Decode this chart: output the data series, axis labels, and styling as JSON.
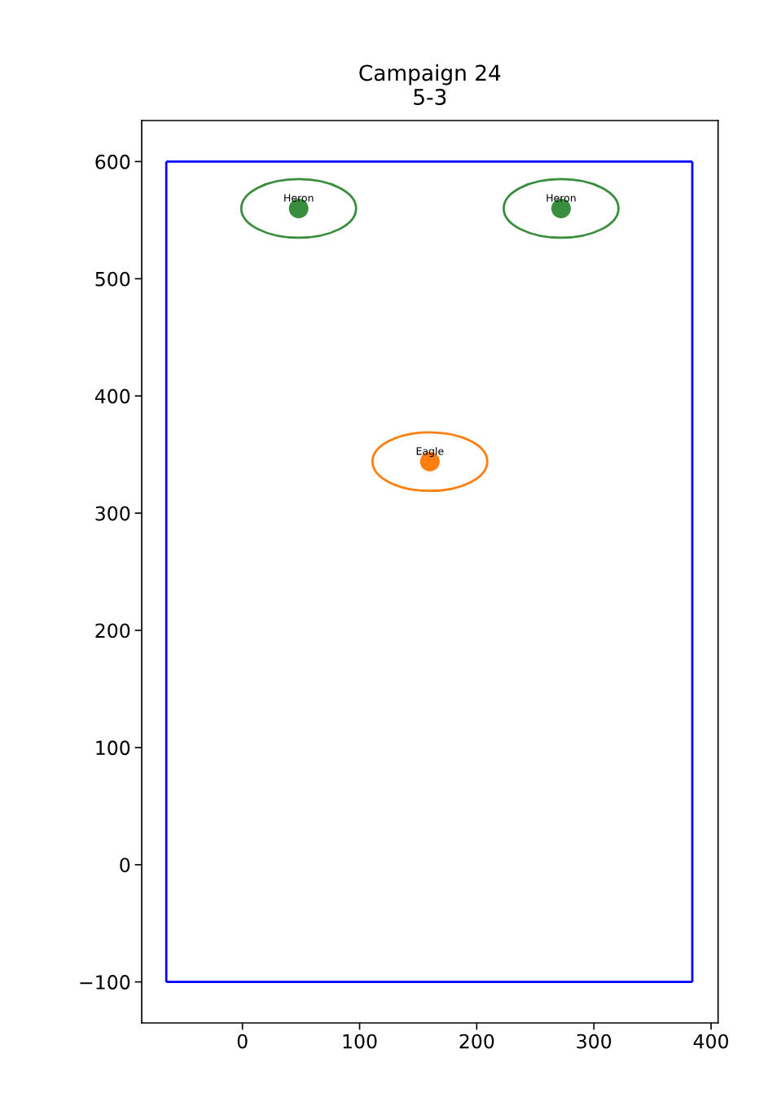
{
  "chart_data": {
    "type": "scatter",
    "title": "Campaign 24\n5-3",
    "x": [
      48,
      272,
      160
    ],
    "values": [
      560,
      560,
      344
    ],
    "colors": [
      "#388e3c",
      "#388e3c",
      "#ff7f0e"
    ],
    "annotations": [
      {
        "text": "Heron",
        "x": 48,
        "y": 560
      },
      {
        "text": "Heron",
        "x": 272,
        "y": 560
      },
      {
        "text": "Eagle",
        "x": 160,
        "y": 344
      }
    ],
    "ref_lines": [
      {
        "axis": "x",
        "value": -65,
        "color": "#0000ff"
      },
      {
        "axis": "x",
        "value": 384,
        "color": "#0000ff"
      },
      {
        "axis": "y",
        "value": 600,
        "color": "#0000ff"
      },
      {
        "axis": "y",
        "value": -100,
        "color": "#0000ff"
      }
    ],
    "xlim": [
      -86,
      406
    ],
    "ylim": [
      -135,
      635
    ],
    "xticks": [
      0,
      100,
      200,
      300,
      400
    ],
    "yticks": [
      {
        "value": -100,
        "label": "−100"
      },
      0,
      100,
      200,
      300,
      400,
      500,
      600
    ],
    "grid": false,
    "legend": false,
    "marker": "circle"
  }
}
